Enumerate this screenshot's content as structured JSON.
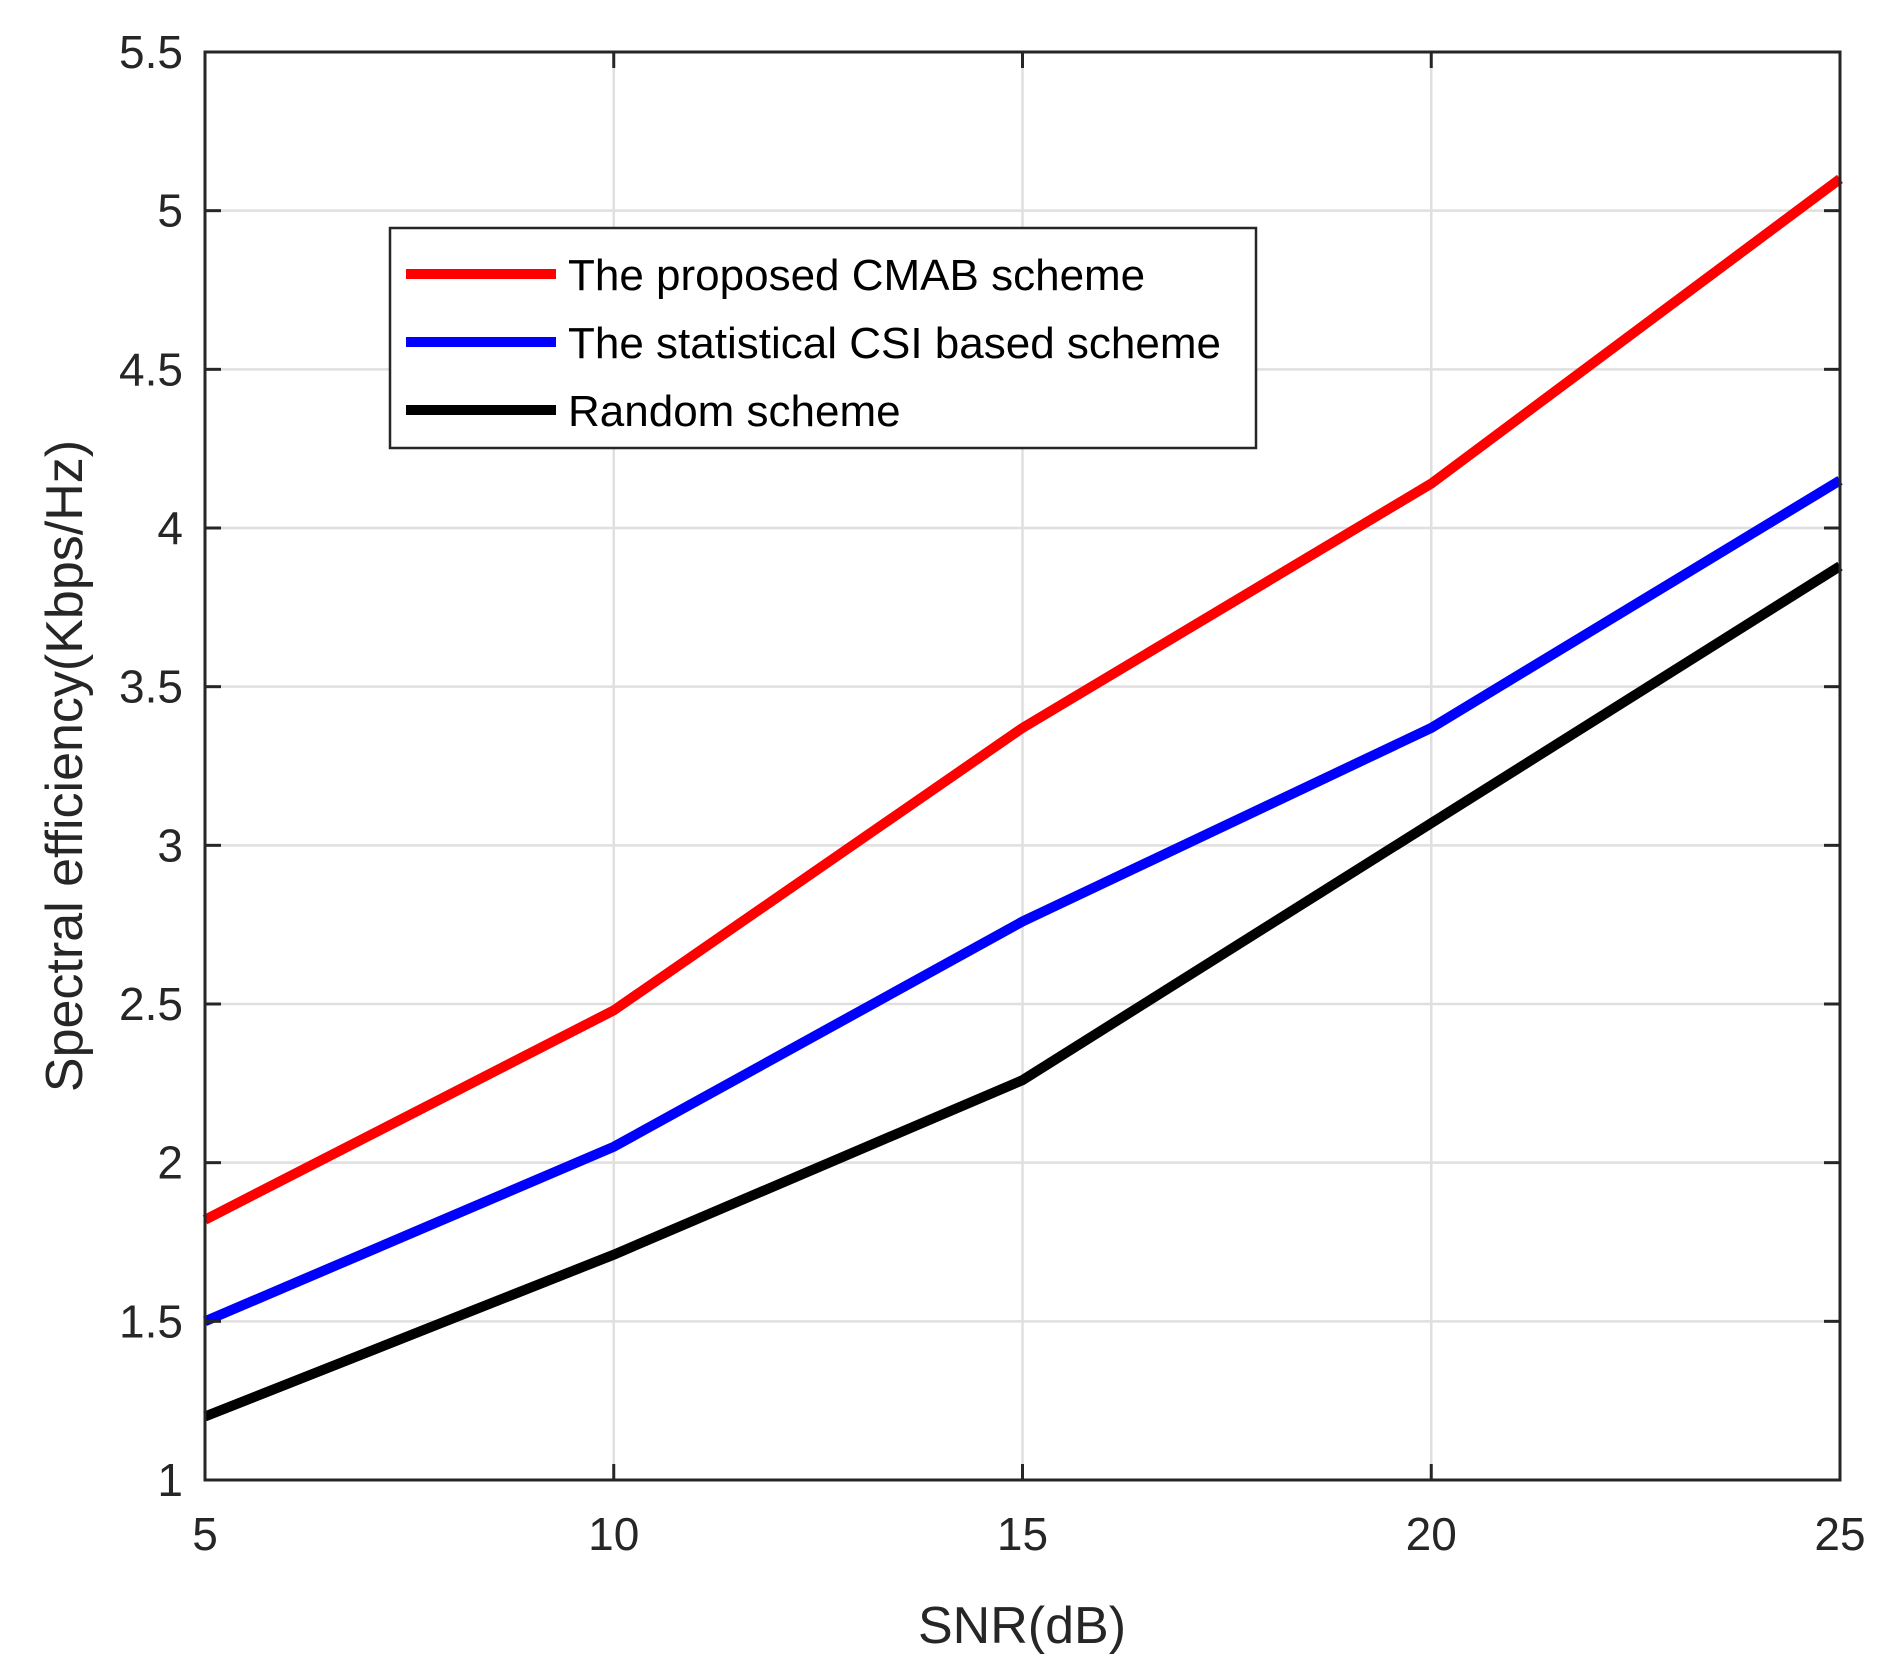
{
  "chart_data": {
    "type": "line",
    "title": "",
    "xlabel": "SNR(dB)",
    "ylabel": "Spectral efficiency(Kbps/Hz)",
    "x": [
      5,
      10,
      15,
      20,
      25
    ],
    "xlim": [
      5,
      25
    ],
    "ylim": [
      1,
      5.5
    ],
    "xticks": [
      5,
      10,
      15,
      20,
      25
    ],
    "xtick_labels": [
      "5",
      "10",
      "15",
      "20",
      "25"
    ],
    "yticks": [
      1,
      1.5,
      2,
      2.5,
      3,
      3.5,
      4,
      4.5,
      5,
      5.5
    ],
    "ytick_labels": [
      "1",
      "1.5",
      "2",
      "2.5",
      "3",
      "3.5",
      "4",
      "4.5",
      "5",
      "5.5"
    ],
    "grid": true,
    "legend_position": "top-left",
    "series": [
      {
        "name": "The proposed CMAB scheme",
        "color": "#ff0000",
        "values": [
          1.82,
          2.48,
          3.37,
          4.14,
          5.1
        ]
      },
      {
        "name": "The statistical CSI based scheme",
        "color": "#0000ff",
        "values": [
          1.5,
          2.05,
          2.76,
          3.37,
          4.15
        ]
      },
      {
        "name": "Random scheme",
        "color": "#000000",
        "values": [
          1.2,
          1.71,
          2.26,
          3.07,
          3.88
        ]
      }
    ]
  }
}
